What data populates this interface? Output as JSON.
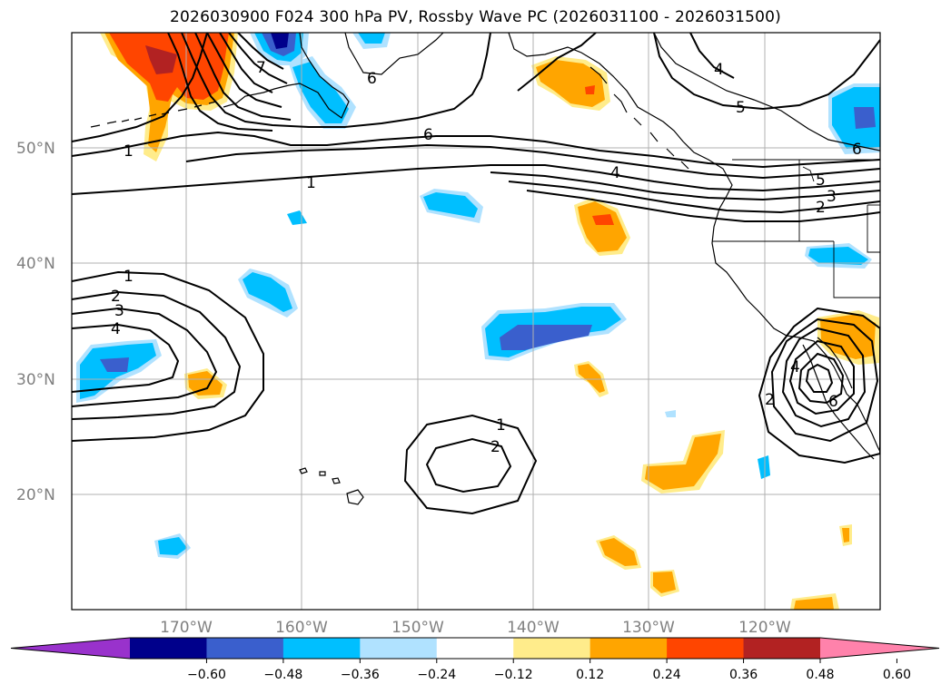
{
  "title": "2026030900 F024 300 hPa PV, Rossby Wave PC (2026031100 - 2026031500)",
  "lat_labels": [
    "50°N",
    "40°N",
    "30°N",
    "20°N"
  ],
  "lon_labels": [
    "170°W",
    "160°W",
    "150°W",
    "140°W",
    "130°W",
    "120°W"
  ],
  "colorbar": {
    "ticks": [
      "−0.60",
      "−0.48",
      "−0.36",
      "−0.24",
      "−0.12",
      "0.12",
      "0.24",
      "0.36",
      "0.48",
      "0.60"
    ],
    "colors": [
      "#9932cc",
      "#00008b",
      "#3a5fcd",
      "#00bfff",
      "#b0e2ff",
      "#ffffff",
      "#ffec8b",
      "#ffa500",
      "#ff4500",
      "#b22222",
      "#ff82ab"
    ]
  },
  "contour_labels": {
    "nw_1": "1",
    "nw_7": "7",
    "nw_6a": "6",
    "jet_6": "6",
    "jet_1": "1",
    "jet_4": "4",
    "ne_4": "4",
    "ne_5": "5",
    "ne_6": "6",
    "jet_5": "5",
    "jet_3": "3",
    "jet_2": "2",
    "w_1": "1",
    "w_2": "2",
    "w_3": "3",
    "w_4": "4",
    "s_1": "1",
    "s_2": "2",
    "se_2": "2",
    "se_4": "4",
    "se_6": "6"
  }
}
